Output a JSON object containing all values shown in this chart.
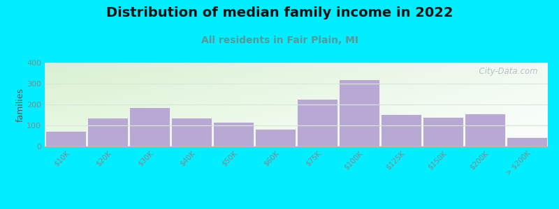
{
  "title": "Distribution of median family income in 2022",
  "subtitle": "All residents in Fair Plain, MI",
  "ylabel": "families",
  "categories": [
    "$10K",
    "$20K",
    "$30K",
    "$40K",
    "$50K",
    "$60K",
    "$75K",
    "$100K",
    "$125K",
    "$150K",
    "$200K",
    "> $200K"
  ],
  "values": [
    72,
    138,
    188,
    138,
    118,
    82,
    228,
    320,
    155,
    140,
    158,
    45
  ],
  "bar_color": "#b8a8d4",
  "bar_edgecolor": "#ffffff",
  "bar_linewidth": 0.5,
  "ylim": [
    0,
    400
  ],
  "yticks": [
    0,
    100,
    200,
    300,
    400
  ],
  "background_outer": "#00eeff",
  "plot_bg_left_color": "#d8f0d0",
  "plot_bg_right_color": "#f0f8f0",
  "title_fontsize": 14,
  "subtitle_fontsize": 10,
  "subtitle_color": "#5a9898",
  "watermark_text": "  City-Data.com",
  "watermark_color": "#aab8c2",
  "grid_color": "#d8e8d8",
  "tick_color": "#888888",
  "ylabel_color": "#555555",
  "bar_width": 0.98
}
